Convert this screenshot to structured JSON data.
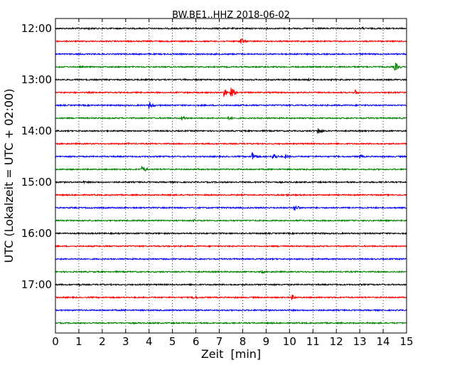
{
  "chart_data": {
    "type": "line",
    "title": "BW.BE1..HHZ 2018-06-02",
    "xlabel": "Zeit  [min]",
    "ylabel": "UTC (Lokalzeit = UTC + 02:00)",
    "xlim": [
      0,
      15
    ],
    "x_ticks": [
      "0",
      "1",
      "2",
      "3",
      "4",
      "5",
      "6",
      "7",
      "8",
      "9",
      "10",
      "11",
      "12",
      "13",
      "14",
      "15"
    ],
    "y_ticks": [
      {
        "label": "12:00",
        "trace": 0
      },
      {
        "label": "13:00",
        "trace": 4
      },
      {
        "label": "14:00",
        "trace": 8
      },
      {
        "label": "15:00",
        "trace": 12
      },
      {
        "label": "16:00",
        "trace": 16
      },
      {
        "label": "17:00",
        "trace": 20
      }
    ],
    "grid": "vertical dotted",
    "color_cycle": [
      "#000000",
      "#ff0000",
      "#0000ff",
      "#008000"
    ],
    "traces": [
      {
        "start": "12:00",
        "events": [
          {
            "t": 1.4,
            "amp": 2
          },
          {
            "t": 13.1,
            "amp": 2
          }
        ]
      },
      {
        "start": "12:15",
        "events": [
          {
            "t": 7.9,
            "amp": 6
          }
        ]
      },
      {
        "start": "12:30",
        "events": []
      },
      {
        "start": "12:45",
        "events": [
          {
            "t": 14.5,
            "amp": 7
          }
        ]
      },
      {
        "start": "13:00",
        "events": [
          {
            "t": 5.5,
            "amp": 1.5
          },
          {
            "t": 10.8,
            "amp": 2
          }
        ]
      },
      {
        "start": "13:15",
        "events": [
          {
            "t": 7.2,
            "amp": 7
          },
          {
            "t": 7.5,
            "amp": 8
          },
          {
            "t": 12.8,
            "amp": 4
          }
        ]
      },
      {
        "start": "13:30",
        "events": [
          {
            "t": 4.0,
            "amp": 6
          }
        ]
      },
      {
        "start": "13:45",
        "events": [
          {
            "t": 5.4,
            "amp": 4
          },
          {
            "t": 7.4,
            "amp": 4
          }
        ]
      },
      {
        "start": "14:00",
        "events": [
          {
            "t": 11.2,
            "amp": 6
          }
        ]
      },
      {
        "start": "14:15",
        "events": [
          {
            "t": 3.1,
            "amp": 2
          }
        ]
      },
      {
        "start": "14:30",
        "events": [
          {
            "t": 8.4,
            "amp": 7
          },
          {
            "t": 9.3,
            "amp": 6
          },
          {
            "t": 9.8,
            "amp": 4
          },
          {
            "t": 13.0,
            "amp": 3
          }
        ]
      },
      {
        "start": "14:45",
        "events": [
          {
            "t": 3.7,
            "amp": 6
          }
        ]
      },
      {
        "start": "15:00",
        "events": [
          {
            "t": 1.2,
            "amp": 2
          }
        ]
      },
      {
        "start": "15:15",
        "events": [
          {
            "t": 4.9,
            "amp": 2
          },
          {
            "t": 9.9,
            "amp": 3
          }
        ]
      },
      {
        "start": "15:30",
        "events": [
          {
            "t": 10.2,
            "amp": 6
          }
        ]
      },
      {
        "start": "15:45",
        "events": [
          {
            "t": 5.9,
            "amp": 2
          }
        ]
      },
      {
        "start": "16:00",
        "events": [
          {
            "t": 6.2,
            "amp": 1.5
          }
        ]
      },
      {
        "start": "16:15",
        "events": [
          {
            "t": 9.5,
            "amp": 1.5
          }
        ]
      },
      {
        "start": "16:30",
        "events": []
      },
      {
        "start": "16:45",
        "events": [
          {
            "t": 8.8,
            "amp": 3
          }
        ]
      },
      {
        "start": "17:00",
        "events": [
          {
            "t": 1.0,
            "amp": 2
          },
          {
            "t": 8.1,
            "amp": 1.5
          }
        ]
      },
      {
        "start": "17:15",
        "events": [
          {
            "t": 5.9,
            "amp": 4
          },
          {
            "t": 10.1,
            "amp": 4
          }
        ]
      },
      {
        "start": "17:30",
        "events": []
      },
      {
        "start": "17:45",
        "events": []
      }
    ]
  }
}
